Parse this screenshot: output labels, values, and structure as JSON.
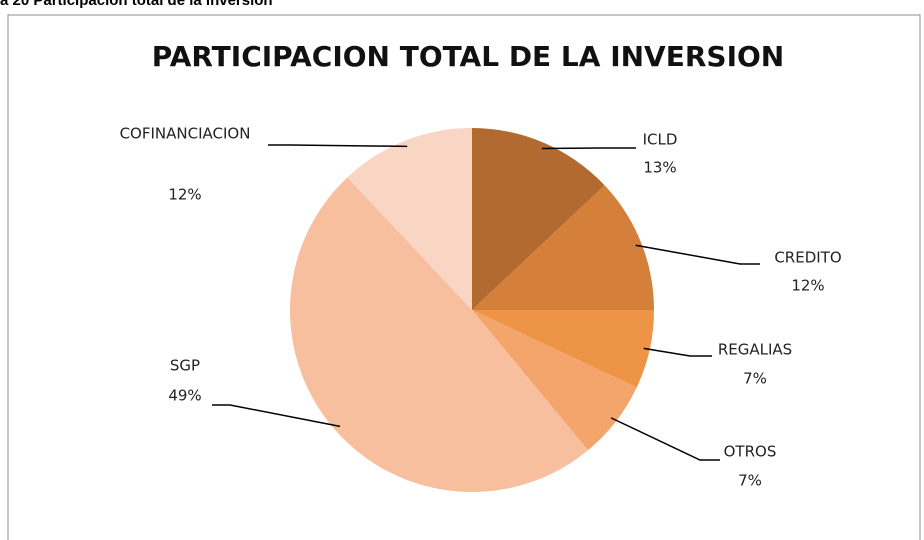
{
  "caption": "a 20 Participación total de la inversión",
  "chart_data": {
    "type": "pie",
    "title": "PARTICIPACION TOTAL DE LA INVERSION",
    "categories": [
      "ICLD",
      "CREDITO",
      "REGALIAS",
      "OTROS",
      "SGP",
      "COFINANCIACION"
    ],
    "values": [
      13,
      12,
      7,
      7,
      49,
      12
    ],
    "value_labels": [
      "13%",
      "12%",
      "7%",
      "7%",
      "49%",
      "12%"
    ],
    "colors": [
      "#b36a30",
      "#d47f3a",
      "#ee9446",
      "#f4a56c",
      "#f8bf9f",
      "#f9d5c3"
    ]
  }
}
